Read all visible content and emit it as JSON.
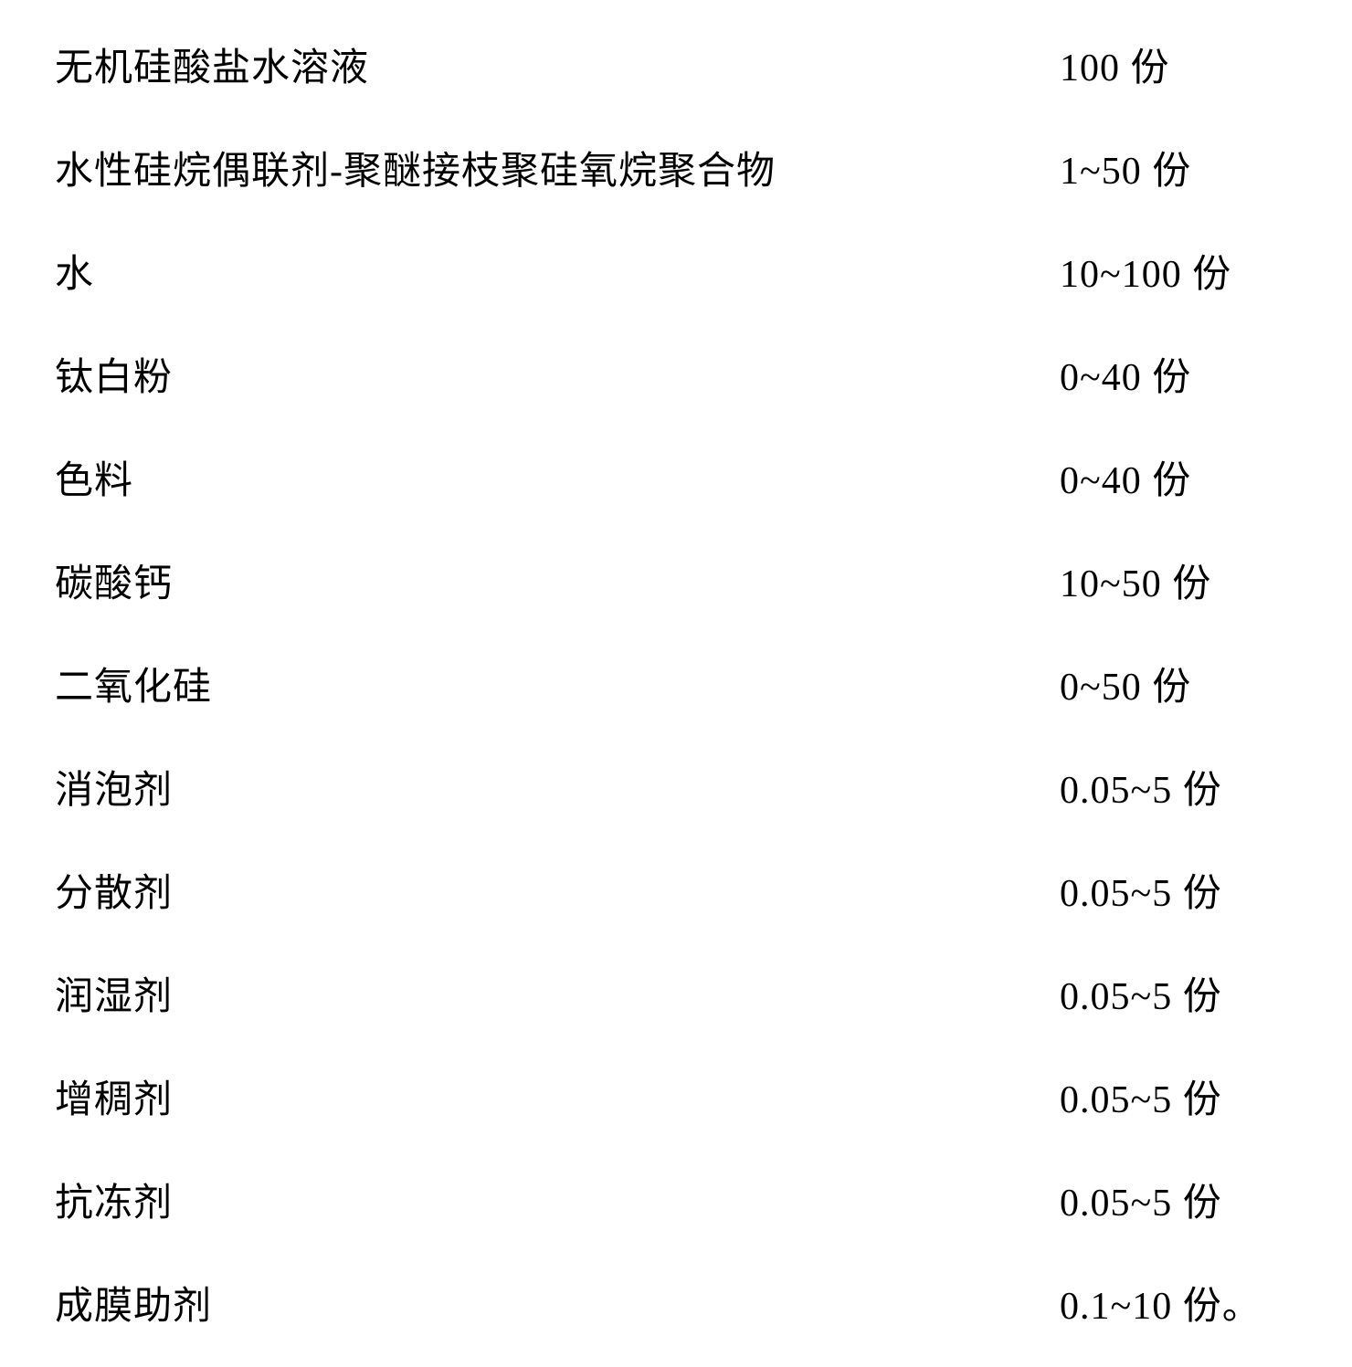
{
  "composition_table": {
    "type": "table",
    "columns": [
      "component",
      "amount"
    ],
    "rows": [
      {
        "label": "无机硅酸盐水溶液",
        "value": "100 份"
      },
      {
        "label": "水性硅烷偶联剂-聚醚接枝聚硅氧烷聚合物",
        "value": "1~50 份"
      },
      {
        "label": "水",
        "value": "10~100 份"
      },
      {
        "label": "钛白粉",
        "value": "0~40 份"
      },
      {
        "label": "色料",
        "value": "0~40 份"
      },
      {
        "label": "碳酸钙",
        "value": "10~50 份"
      },
      {
        "label": "二氧化硅",
        "value": "0~50 份"
      },
      {
        "label": "消泡剂",
        "value": "0.05~5 份"
      },
      {
        "label": "分散剂",
        "value": "0.05~5 份"
      },
      {
        "label": "润湿剂",
        "value": "0.05~5 份"
      },
      {
        "label": "增稠剂",
        "value": "0.05~5 份"
      },
      {
        "label": "抗冻剂",
        "value": "0.05~5 份"
      },
      {
        "label": "成膜助剂",
        "value": "0.1~10 份。"
      }
    ],
    "text_color": "#000000",
    "background_color": "#ffffff",
    "font_size": 42,
    "font_family": "SimSun"
  }
}
